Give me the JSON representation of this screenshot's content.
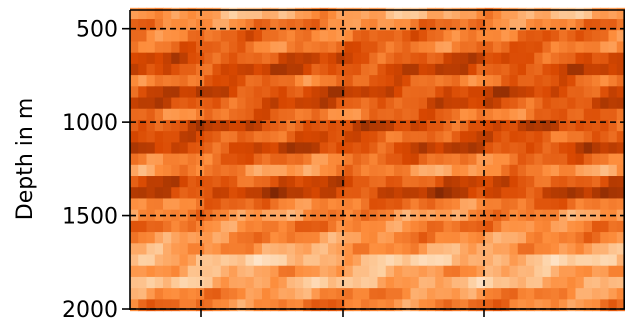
{
  "chart_data": {
    "type": "heatmap",
    "title": "",
    "xlabel": "",
    "ylabel": "Depth in m",
    "y_axis_inverted": true,
    "ylim": [
      2000,
      400
    ],
    "y_ticks": [
      500,
      1000,
      1500,
      2000
    ],
    "y_tick_labels": [
      "500",
      "1000",
      "1500",
      "2000"
    ],
    "x_tick_labels": [
      "",
      "",
      ""
    ],
    "grid": true,
    "grid_style": "dashed",
    "colormap": "Oranges",
    "colormap_colors": [
      "#fff5eb",
      "#fdd0a2",
      "#fd8d3c",
      "#d94801",
      "#7f2704"
    ],
    "value_range": [
      0,
      1
    ],
    "depth_profile": {
      "depth": [
        420,
        480,
        540,
        600,
        660,
        720,
        780,
        840,
        900,
        960,
        1020,
        1080,
        1140,
        1200,
        1260,
        1320,
        1380,
        1440,
        1500,
        1560,
        1620,
        1680,
        1740,
        1800,
        1860,
        1920,
        1980
      ],
      "intensity": [
        0.4,
        0.55,
        0.6,
        0.6,
        0.72,
        0.75,
        0.62,
        0.76,
        0.72,
        0.6,
        0.74,
        0.68,
        0.76,
        0.6,
        0.5,
        0.72,
        0.8,
        0.58,
        0.5,
        0.55,
        0.5,
        0.45,
        0.3,
        0.42,
        0.35,
        0.5,
        0.55
      ]
    }
  }
}
